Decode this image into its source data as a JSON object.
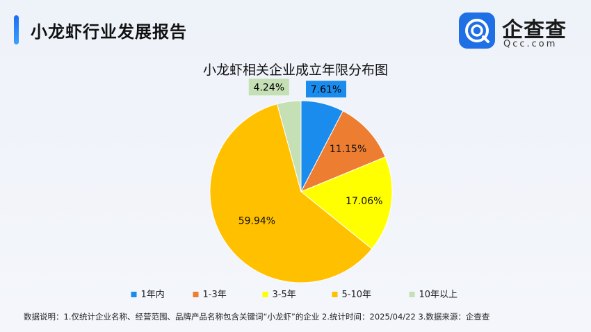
{
  "header": {
    "title": "小龙虾行业发展报告",
    "accent_color": "#1e6cf2"
  },
  "logo": {
    "name": "企查查",
    "sub": "Qcc.com",
    "brand_color": "#1f6fe5"
  },
  "chart_data": {
    "type": "pie",
    "title": "小龙虾相关企业成立年限分布图",
    "start_angle_deg": 0,
    "direction": "clockwise",
    "legend_position": "bottom",
    "slices": [
      {
        "label": "1年内",
        "value": 7.61,
        "display": "7.61%",
        "color": "#1a8cee"
      },
      {
        "label": "1-3年",
        "value": 11.15,
        "display": "11.15%",
        "color": "#ed7d31"
      },
      {
        "label": "3-5年",
        "value": 17.06,
        "display": "17.06%",
        "color": "#ffff00"
      },
      {
        "label": "5-10年",
        "value": 59.94,
        "display": "59.94%",
        "color": "#ffc000"
      },
      {
        "label": "10年以上",
        "value": 4.24,
        "display": "4.24%",
        "color": "#c5e0b4"
      }
    ]
  },
  "footnote": "数据说明：1.仅统计企业名称、经营范围、品牌产品名称包含关键词“小龙虾”的企业   2.统计时间：2025/04/22   3.数据来源：企查查"
}
